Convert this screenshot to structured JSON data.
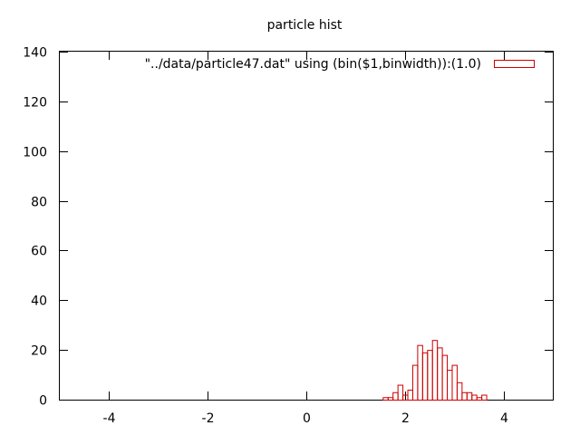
{
  "chart_data": {
    "type": "bar",
    "title": "particle hist",
    "xlabel": "",
    "ylabel": "",
    "xlim": [
      -5,
      5
    ],
    "ylim": [
      0,
      140
    ],
    "x_ticks": [
      "-4",
      "-2",
      "0",
      "2",
      "4"
    ],
    "y_ticks": [
      "0",
      "20",
      "40",
      "60",
      "80",
      "100",
      "120",
      "140"
    ],
    "grid": false,
    "legend_position": "top-right",
    "bin_width": 0.1,
    "series": [
      {
        "name": "\"../data/particle47.dat\" using (bin($1,binwidth)):(1.0)",
        "color": "#cc0000",
        "x": [
          1.6,
          1.7,
          1.8,
          1.9,
          2.0,
          2.1,
          2.2,
          2.3,
          2.4,
          2.5,
          2.6,
          2.7,
          2.8,
          2.9,
          3.0,
          3.1,
          3.2,
          3.3,
          3.4,
          3.5,
          3.6
        ],
        "values": [
          1,
          1,
          3,
          6,
          2,
          4,
          14,
          22,
          19,
          20,
          24,
          21,
          18,
          12,
          14,
          7,
          3,
          3,
          2,
          1,
          2
        ]
      }
    ]
  }
}
